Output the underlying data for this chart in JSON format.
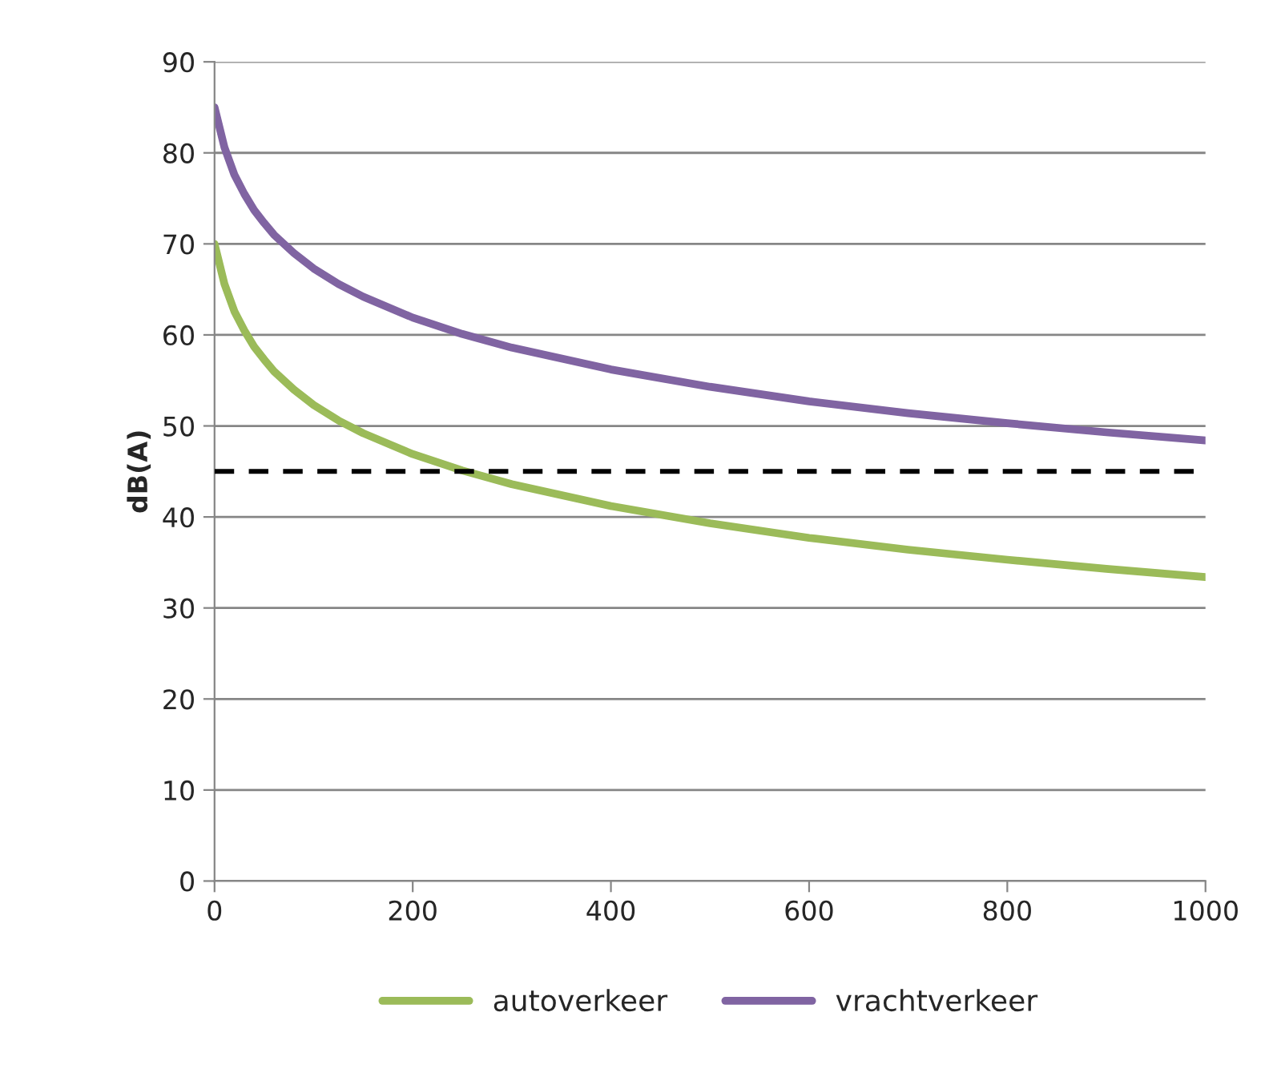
{
  "chart_data": {
    "type": "line",
    "ylabel": "dB(A)",
    "x": [
      0,
      10,
      20,
      30,
      40,
      50,
      60,
      80,
      100,
      125,
      150,
      200,
      250,
      300,
      400,
      500,
      600,
      700,
      800,
      900,
      1000
    ],
    "series": [
      {
        "name": "autoverkeer",
        "color": "#9bbb59",
        "values": [
          70,
          65.6,
          62.6,
          60.5,
          58.7,
          57.3,
          56.0,
          54.0,
          52.3,
          50.6,
          49.2,
          46.9,
          45.1,
          43.6,
          41.2,
          39.3,
          37.7,
          36.4,
          35.3,
          34.3,
          33.4
        ]
      },
      {
        "name": "vrachtverkeer",
        "color": "#8064a2",
        "values": [
          85,
          80.6,
          77.6,
          75.5,
          73.7,
          72.3,
          71.0,
          69.0,
          67.3,
          65.6,
          64.2,
          61.9,
          60.1,
          58.6,
          56.2,
          54.3,
          52.7,
          51.4,
          50.3,
          49.3,
          48.4
        ]
      }
    ],
    "xlim": [
      0,
      1000
    ],
    "xticks": [
      0,
      200,
      400,
      600,
      800,
      1000
    ],
    "ylim": [
      0,
      90
    ],
    "yticks": [
      0,
      10,
      20,
      30,
      40,
      50,
      60,
      70,
      80,
      90
    ],
    "ref_lines": [
      {
        "axis": "y",
        "value": 45,
        "color": "#000000",
        "line_style": "dashed"
      }
    ],
    "grid": "y",
    "legend": "bottom",
    "marker": "none",
    "line_style": "solid"
  }
}
